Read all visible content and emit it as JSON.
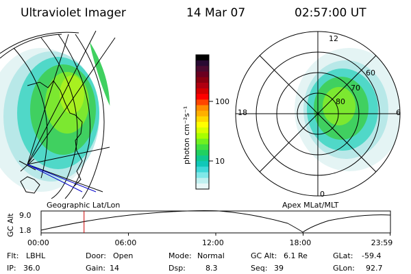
{
  "header": {
    "title": "Ultraviolet Imager",
    "date": "14 Mar 07",
    "time": "02:57:00 UT"
  },
  "colorbar": {
    "unit": "photon cm⁻²s⁻¹",
    "ticks": [
      "100",
      "10"
    ],
    "colors": [
      "#000000",
      "#2a0a33",
      "#4b0a30",
      "#6b0020",
      "#8a0010",
      "#b00010",
      "#d40000",
      "#ff0000",
      "#ff4500",
      "#ff8c00",
      "#ffb000",
      "#ffd800",
      "#ffff00",
      "#d8ff00",
      "#a8ff00",
      "#70f020",
      "#40e040",
      "#20d060",
      "#10c890",
      "#10c8b8",
      "#40d8d8",
      "#80e8e8",
      "#c0f0f0",
      "#e8f8f8"
    ]
  },
  "map_left": {
    "caption": "Geographic Lat/Lon"
  },
  "map_right": {
    "caption": "Apex MLat/MLT",
    "lat_labels": [
      "80",
      "70",
      "60"
    ],
    "mlt_labels": [
      "12",
      "18",
      "6",
      "0"
    ]
  },
  "timeline": {
    "ylabel": "GC Alt",
    "yticks": [
      "9.0",
      "1.8"
    ],
    "xticks": [
      "00:00",
      "06:00",
      "12:00",
      "18:00",
      "23:59"
    ],
    "marker_time_hours": 2.95
  },
  "status": {
    "row1": [
      {
        "label": "Flt:",
        "value": "LBHL"
      },
      {
        "label": "Door:",
        "value": "Open"
      },
      {
        "label": "Mode:",
        "value": "Normal"
      },
      {
        "label": "GC Alt:",
        "value": "6.1 Re"
      },
      {
        "label": "GLat:",
        "value": "-59.4"
      }
    ],
    "row2": [
      {
        "label": "IP:",
        "value": "36.0"
      },
      {
        "label": "Gain:",
        "value": "14"
      },
      {
        "label": "Dsp:",
        "value": "8.3"
      },
      {
        "label": "Seq:",
        "value": "39"
      },
      {
        "label": "GLon:",
        "value": "92.7"
      }
    ]
  }
}
